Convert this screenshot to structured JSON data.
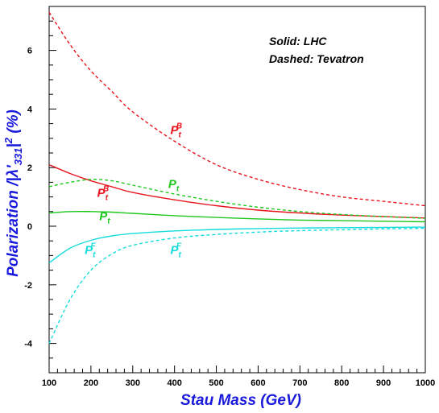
{
  "chart_data": {
    "type": "line",
    "xlabel": "Stau Mass (GeV)",
    "ylabel": "Polarization /|λ'331|² (%)",
    "ylabel_parts": {
      "main": "Polarization /|",
      "lambda": "λ",
      "prime": "'",
      "sub": "331",
      "after": "|",
      "sup": "2",
      "tail": " (%)"
    },
    "xlim": [
      100,
      1000
    ],
    "ylim": [
      -5,
      7.5
    ],
    "x_ticks": [
      100,
      200,
      300,
      400,
      500,
      600,
      700,
      800,
      900,
      1000
    ],
    "y_ticks": [
      -4,
      -2,
      0,
      2,
      4,
      6
    ],
    "grid": false,
    "legend": {
      "line1": "Solid: LHC",
      "line2": "Dashed: Tevatron"
    },
    "x": [
      100,
      150,
      200,
      250,
      300,
      400,
      500,
      600,
      700,
      800,
      900,
      1000
    ],
    "series": [
      {
        "color": "#e8141e",
        "dash": true,
        "values": [
          7.3,
          6.2,
          5.3,
          4.6,
          3.9,
          2.9,
          2.1,
          1.6,
          1.25,
          1.0,
          0.85,
          0.7
        ]
      },
      {
        "color": "#e8141e",
        "dash": false,
        "values": [
          2.1,
          1.8,
          1.55,
          1.35,
          1.15,
          0.9,
          0.7,
          0.55,
          0.45,
          0.38,
          0.33,
          0.28
        ]
      },
      {
        "color": "#1ec81e",
        "dash": true,
        "values": [
          1.35,
          1.5,
          1.6,
          1.55,
          1.4,
          1.1,
          0.85,
          0.65,
          0.5,
          0.4,
          0.33,
          0.27
        ]
      },
      {
        "color": "#1ec81e",
        "dash": false,
        "values": [
          0.45,
          0.5,
          0.5,
          0.48,
          0.44,
          0.36,
          0.3,
          0.25,
          0.21,
          0.19,
          0.17,
          0.15
        ]
      },
      {
        "color": "#14dcdc",
        "dash": false,
        "values": [
          -1.25,
          -0.75,
          -0.48,
          -0.33,
          -0.25,
          -0.16,
          -0.11,
          -0.08,
          -0.06,
          -0.05,
          -0.04,
          -0.03
        ]
      },
      {
        "color": "#14dcdc",
        "dash": true,
        "values": [
          -4.0,
          -2.5,
          -1.5,
          -0.95,
          -0.65,
          -0.4,
          -0.28,
          -0.2,
          -0.15,
          -0.12,
          -0.09,
          -0.07
        ]
      }
    ],
    "curve_labels": [
      {
        "main": "P",
        "sub": "t",
        "sup": "B",
        "color": "#e8141e",
        "x": 390,
        "y": 3.15
      },
      {
        "main": "P",
        "sub": "t",
        "sup": "B",
        "color": "#e8141e",
        "x": 215,
        "y": 1.0
      },
      {
        "main": "P",
        "sub": "t",
        "sup": "",
        "color": "#1ec81e",
        "x": 385,
        "y": 1.3
      },
      {
        "main": "P",
        "sub": "t",
        "sup": "",
        "color": "#1ec81e",
        "x": 220,
        "y": 0.2
      },
      {
        "main": "P",
        "sub": "t",
        "sup": "F",
        "color": "#14dcdc",
        "x": 185,
        "y": -0.95
      },
      {
        "main": "P",
        "sub": "t",
        "sup": "F",
        "color": "#14dcdc",
        "x": 390,
        "y": -0.95
      }
    ]
  }
}
